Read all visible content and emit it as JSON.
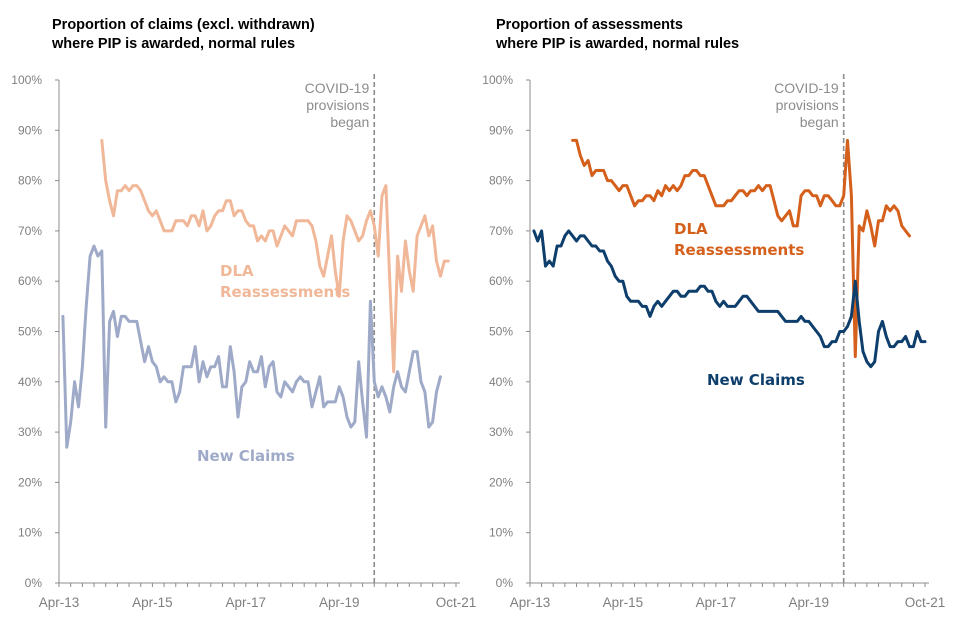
{
  "chart_data": [
    {
      "type": "line",
      "title": "Proportion of claims (excl. withdrawn)\nwhere PIP is awarded, normal rules",
      "xlabel": "",
      "ylabel": "",
      "x_start": "Apr-13",
      "x_end": "Oct-21",
      "x_unit": "month",
      "xticks": [
        {
          "label": "Apr-13",
          "month_index": 0
        },
        {
          "label": "Apr-15",
          "month_index": 24
        },
        {
          "label": "Apr-17",
          "month_index": 48
        },
        {
          "label": "Apr-19",
          "month_index": 72
        },
        {
          "label": "Oct-21",
          "month_index": 102
        }
      ],
      "ylim": [
        0,
        100
      ],
      "yticks": [
        "0%",
        "10%",
        "20%",
        "30%",
        "40%",
        "50%",
        "60%",
        "70%",
        "80%",
        "90%",
        "100%"
      ],
      "grid": false,
      "annotation": {
        "text": "COVID-19\nprovisions\nbegan",
        "month_index": 81
      },
      "series": [
        {
          "name": "DLA Reassessments",
          "color": "#f0b898",
          "start_index": 11,
          "values": [
            88,
            80,
            76,
            73,
            78,
            78,
            79,
            78,
            79,
            79,
            78,
            76,
            74,
            73,
            74,
            72,
            70,
            70,
            70,
            72,
            72,
            72,
            71,
            73,
            73,
            71,
            74,
            70,
            71,
            73,
            74,
            74,
            76,
            76,
            73,
            74,
            74,
            72,
            71,
            71,
            68,
            69,
            68,
            70,
            70,
            67,
            69,
            71,
            70,
            69,
            72,
            72,
            72,
            72,
            71,
            68,
            63,
            61,
            65,
            69,
            62,
            57,
            68,
            73,
            72,
            70,
            68,
            69,
            72,
            74,
            71,
            65,
            77,
            79,
            60,
            42,
            65,
            58,
            68,
            62,
            58,
            69,
            71,
            73,
            69,
            71,
            64,
            61,
            64,
            64
          ]
        },
        {
          "name": "New Claims",
          "color": "#9eaac8",
          "start_index": 1,
          "values": [
            53,
            27,
            32,
            40,
            35,
            43,
            55,
            65,
            67,
            65,
            66,
            31,
            52,
            54,
            49,
            53,
            53,
            52,
            52,
            52,
            48,
            44,
            47,
            44,
            43,
            40,
            41,
            40,
            40,
            36,
            38,
            43,
            43,
            43,
            47,
            40,
            44,
            41,
            43,
            43,
            45,
            39,
            39,
            47,
            42,
            33,
            39,
            40,
            44,
            42,
            42,
            45,
            39,
            43,
            44,
            38,
            37,
            40,
            39,
            38,
            40,
            41,
            40,
            40,
            35,
            38,
            41,
            35,
            36,
            36,
            36,
            39,
            37,
            33,
            31,
            32,
            44,
            36,
            29,
            56,
            40,
            37,
            39,
            37,
            34,
            39,
            42,
            39,
            38,
            42,
            46,
            46,
            40,
            38,
            31,
            32,
            38,
            41
          ]
        }
      ]
    },
    {
      "type": "line",
      "title": "Proportion of assessments\nwhere PIP is awarded, normal rules",
      "xlabel": "",
      "ylabel": "",
      "x_start": "Apr-13",
      "x_end": "Oct-21",
      "x_unit": "month",
      "xticks": [
        {
          "label": "Apr-13",
          "month_index": 0
        },
        {
          "label": "Apr-15",
          "month_index": 24
        },
        {
          "label": "Apr-17",
          "month_index": 48
        },
        {
          "label": "Apr-19",
          "month_index": 72
        },
        {
          "label": "Oct-21",
          "month_index": 102
        }
      ],
      "ylim": [
        0,
        100
      ],
      "yticks": [
        "0%",
        "10%",
        "20%",
        "30%",
        "40%",
        "50%",
        "60%",
        "70%",
        "80%",
        "90%",
        "100%"
      ],
      "grid": false,
      "annotation": {
        "text": "COVID-19\nprovisions\nbegan",
        "month_index": 81
      },
      "series": [
        {
          "name": "DLA Reassessments",
          "color": "#d4601c",
          "start_index": 11,
          "values": [
            88,
            88,
            85,
            83,
            84,
            81,
            82,
            82,
            82,
            80,
            80,
            79,
            78,
            79,
            79,
            77,
            75,
            76,
            76,
            77,
            77,
            76,
            78,
            77,
            79,
            78,
            79,
            78,
            79,
            81,
            81,
            82,
            82,
            81,
            81,
            79,
            77,
            75,
            75,
            75,
            76,
            76,
            77,
            78,
            78,
            77,
            78,
            78,
            79,
            78,
            79,
            79,
            76,
            73,
            72,
            73,
            74,
            71,
            71,
            77,
            78,
            78,
            77,
            77,
            75,
            77,
            77,
            76,
            75,
            75,
            77,
            88,
            77,
            45,
            71,
            70,
            74,
            71,
            67,
            72,
            72,
            75,
            74,
            75,
            74,
            71,
            70,
            69
          ]
        },
        {
          "name": "New Claims",
          "color": "#0e3e6b",
          "start_index": 1,
          "values": [
            70,
            68,
            70,
            63,
            64,
            63,
            67,
            67,
            69,
            70,
            69,
            68,
            69,
            69,
            68,
            67,
            67,
            66,
            66,
            64,
            63,
            61,
            60,
            60,
            57,
            56,
            56,
            56,
            55,
            55,
            53,
            55,
            56,
            55,
            56,
            57,
            58,
            58,
            57,
            57,
            58,
            58,
            58,
            59,
            59,
            58,
            58,
            56,
            55,
            56,
            55,
            55,
            55,
            56,
            57,
            57,
            56,
            55,
            54,
            54,
            54,
            54,
            54,
            54,
            53,
            52,
            52,
            52,
            52,
            53,
            52,
            52,
            51,
            50,
            49,
            47,
            47,
            48,
            48,
            50,
            50,
            51,
            53,
            60,
            52,
            46,
            44,
            43,
            44,
            50,
            52,
            49,
            47,
            47,
            48,
            48,
            49,
            47,
            47,
            50,
            48,
            48
          ]
        }
      ]
    }
  ]
}
